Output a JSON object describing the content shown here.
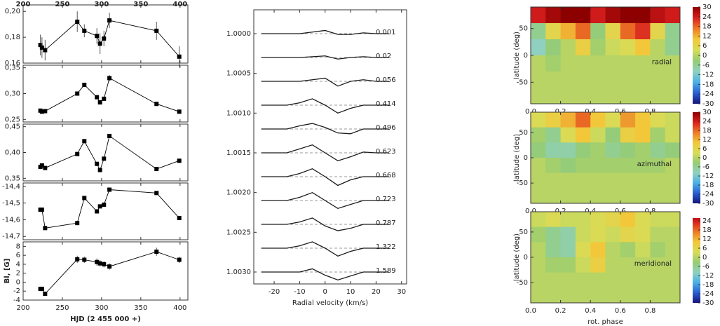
{
  "chart_data": [
    {
      "type": "line",
      "x": [
        222,
        224,
        228,
        269,
        278,
        294,
        298,
        303,
        310,
        370,
        399
      ],
      "xlim": [
        200,
        410
      ],
      "xticks": [
        200,
        250,
        300,
        350,
        400
      ],
      "xtick_side": "top",
      "marker": "square",
      "series": [
        {
          "color": "#000000",
          "values": [
            0.174,
            0.172,
            0.17,
            0.192,
            0.185,
            0.181,
            0.175,
            0.179,
            0.193,
            0.185,
            0.165
          ],
          "errors": [
            0.008,
            0.008,
            0.008,
            0.008,
            0.005,
            0.006,
            0.008,
            0.006,
            0.006,
            0.007,
            0.008
          ]
        }
      ],
      "ylim": [
        0.16,
        0.205
      ],
      "yticks": [
        {
          "value": 0.16,
          "label": "0,16"
        },
        {
          "value": 0.18,
          "label": "0,18"
        },
        {
          "value": 0.2,
          "label": "0,20"
        }
      ]
    },
    {
      "type": "line",
      "x": [
        222,
        224,
        228,
        269,
        278,
        294,
        298,
        303,
        310,
        370,
        399
      ],
      "xlim": [
        200,
        410
      ],
      "xticks": [
        200,
        250,
        300,
        350,
        400
      ],
      "marker": "square",
      "series": [
        {
          "color": "#000000",
          "values": [
            0.267,
            0.265,
            0.266,
            0.3,
            0.317,
            0.293,
            0.283,
            0.29,
            0.33,
            0.28,
            0.265
          ],
          "errors": [
            0.003,
            0.003,
            0.003,
            0.004,
            0.003,
            0.004,
            0.004,
            0.004,
            0.006,
            0.004,
            0.004
          ]
        }
      ],
      "ylim": [
        0.245,
        0.355
      ],
      "yticks": [
        {
          "value": 0.25,
          "label": "0,25"
        },
        {
          "value": 0.3,
          "label": "0,30"
        },
        {
          "value": 0.35,
          "label": "0,35"
        }
      ]
    },
    {
      "type": "line",
      "x": [
        222,
        224,
        228,
        269,
        278,
        294,
        298,
        303,
        310,
        370,
        399
      ],
      "xlim": [
        200,
        410
      ],
      "xticks": [
        200,
        250,
        300,
        350,
        400
      ],
      "marker": "square",
      "series": [
        {
          "color": "#000000",
          "values": [
            0.372,
            0.375,
            0.37,
            0.397,
            0.422,
            0.378,
            0.366,
            0.388,
            0.432,
            0.368,
            0.384
          ],
          "errors": [
            0.003,
            0.003,
            0.003,
            0.003,
            0.003,
            0.003,
            0.003,
            0.003,
            0.003,
            0.003,
            0.003
          ]
        }
      ],
      "ylim": [
        0.345,
        0.455
      ],
      "yticks": [
        {
          "value": 0.35,
          "label": "0,35"
        },
        {
          "value": 0.4,
          "label": "0,40"
        },
        {
          "value": 0.45,
          "label": "0,45"
        }
      ]
    },
    {
      "type": "line",
      "x": [
        222,
        224,
        228,
        269,
        278,
        294,
        298,
        303,
        310,
        370,
        399
      ],
      "xlim": [
        200,
        410
      ],
      "xticks": [
        200,
        250,
        300,
        350,
        400
      ],
      "marker": "square",
      "series": [
        {
          "color": "#000000",
          "values": [
            -14.54,
            -14.54,
            -14.65,
            -14.62,
            -14.47,
            -14.55,
            -14.52,
            -14.51,
            -14.42,
            -14.44,
            -14.59
          ],
          "errors": [
            0.005,
            0.005,
            0.005,
            0.005,
            0.005,
            0.005,
            0.005,
            0.005,
            0.005,
            0.005,
            0.005
          ]
        }
      ],
      "ylim": [
        -14.72,
        -14.38
      ],
      "yticks": [
        {
          "value": -14.4,
          "label": "-14,4"
        },
        {
          "value": -14.5,
          "label": "-14,5"
        },
        {
          "value": -14.6,
          "label": "-14,6"
        },
        {
          "value": -14.7,
          "label": "-14,7"
        }
      ]
    },
    {
      "type": "line",
      "x": [
        222,
        224,
        228,
        269,
        278,
        294,
        298,
        303,
        310,
        370,
        399
      ],
      "xlim": [
        200,
        410
      ],
      "xticks": [
        200,
        250,
        300,
        350,
        400
      ],
      "xtick_side": "bottom",
      "marker": "square",
      "xlabel": "HJD (2 455 000 +)",
      "ylabel": "Bl, [G]",
      "series": [
        {
          "color": "#000000",
          "values": [
            -1.5,
            -1.5,
            -2.6,
            5.1,
            5.0,
            4.5,
            4.2,
            4.0,
            3.5,
            6.8,
            5.0
          ],
          "errors": [
            0.5,
            0.5,
            0.5,
            0.8,
            0.7,
            0.8,
            0.7,
            0.7,
            0.7,
            0.9,
            0.7
          ]
        }
      ],
      "ylim": [
        -4,
        9
      ],
      "yticks": [
        -4,
        -2,
        0,
        2,
        4,
        6,
        8
      ]
    },
    {
      "type": "line",
      "x": [
        -25,
        -20,
        -15,
        -10,
        -5,
        0,
        5,
        10,
        15,
        20,
        25
      ],
      "xlim": [
        -28,
        32
      ],
      "xticks": [
        -20,
        -10,
        0,
        10,
        20,
        30
      ],
      "xtick_side": "bottom",
      "xlabel": "Radial velocity (km/s)",
      "ylim": [
        1.00315,
        0.9997
      ],
      "yticks": [
        {
          "value": 1,
          "label": "1.0000"
        },
        {
          "value": 1.0005,
          "label": "1.0005"
        },
        {
          "value": 1.001,
          "label": "1.0010"
        },
        {
          "value": 1.0015,
          "label": "1.0015"
        },
        {
          "value": 1.002,
          "label": "1.0020"
        },
        {
          "value": 1.0025,
          "label": "1.0025"
        },
        {
          "value": 1.003,
          "label": "1.0030"
        }
      ],
      "series": [
        {
          "name": "0.001",
          "color": "#1a1a1a",
          "values": [
            1,
            1,
            1,
            1,
            0.99998,
            0.99996,
            1.00001,
            1.00001,
            0.99999,
            1,
            1
          ]
        },
        {
          "name": "0.02",
          "color": "#1a1a1a",
          "values": [
            1.0003,
            1.0003,
            1.0003,
            1.0003,
            1.00029,
            1.00028,
            1.00032,
            1.0003,
            1.00029,
            1.0003,
            1.0003
          ]
        },
        {
          "name": "0.056",
          "color": "#1a1a1a",
          "values": [
            1.0006,
            1.0006,
            1.0006,
            1.0006,
            1.00058,
            1.00056,
            1.00066,
            1.0006,
            1.00058,
            1.0006,
            1.0006
          ]
        },
        {
          "name": "0.414",
          "color": "#1a1a1a",
          "values": [
            1.0009,
            1.0009,
            1.0009,
            1.00087,
            1.00082,
            1.0009,
            1.001,
            1.00094,
            1.0009,
            1.0009,
            1.0009
          ]
        },
        {
          "name": "0.496",
          "color": "#1a1a1a",
          "values": [
            1.0012,
            1.0012,
            1.0012,
            1.00116,
            1.00113,
            1.00118,
            1.00125,
            1.00126,
            1.0012,
            1.0012,
            1.0012
          ]
        },
        {
          "name": "0.623",
          "color": "#1a1a1a",
          "values": [
            1.0015,
            1.0015,
            1.0015,
            1.00145,
            1.0014,
            1.0015,
            1.0016,
            1.00155,
            1.00149,
            1.0015,
            1.0015
          ]
        },
        {
          "name": "0.668",
          "color": "#1a1a1a",
          "values": [
            1.0018,
            1.0018,
            1.0018,
            1.00176,
            1.0017,
            1.0018,
            1.00191,
            1.00184,
            1.0018,
            1.0018,
            1.0018
          ]
        },
        {
          "name": "0.723",
          "color": "#1a1a1a",
          "values": [
            1.0021,
            1.0021,
            1.0021,
            1.00206,
            1.002,
            1.0021,
            1.0022,
            1.00215,
            1.0021,
            1.0021,
            1.0021
          ]
        },
        {
          "name": "0.787",
          "color": "#1a1a1a",
          "values": [
            1.0024,
            1.0024,
            1.0024,
            1.00237,
            1.00232,
            1.00242,
            1.00248,
            1.00245,
            1.0024,
            1.0024,
            1.0024
          ]
        },
        {
          "name": "1.322",
          "color": "#1a1a1a",
          "values": [
            1.0027,
            1.0027,
            1.0027,
            1.00267,
            1.00262,
            1.0027,
            1.0028,
            1.00274,
            1.0027,
            1.0027,
            1.0027
          ]
        },
        {
          "name": "1.589",
          "color": "#1a1a1a",
          "values": [
            1.003,
            1.003,
            1.003,
            1.003,
            1.00296,
            1.00304,
            1.0031,
            1.00305,
            1.003,
            1.003,
            1.003
          ]
        }
      ]
    },
    {
      "type": "heatmap",
      "annotation": "radial",
      "ylabel": "latitude (deg)",
      "x": [
        0,
        0.1,
        0.2,
        0.3,
        0.4,
        0.5,
        0.6,
        0.7,
        0.8,
        0.9,
        1.0
      ],
      "y": [
        90,
        60,
        30,
        0,
        -30,
        -60,
        -90
      ],
      "xticks": [
        {
          "value": 0,
          "label": "0.0"
        },
        0.2,
        0.4,
        0.6,
        0.8
      ],
      "yticks": [
        -50,
        0,
        50
      ],
      "xtick_side": "bottom",
      "zlim": [
        -30,
        30
      ],
      "zticks": [
        30,
        24,
        18,
        12,
        6,
        0,
        -6,
        -12,
        -18,
        -24,
        -30
      ],
      "colorscale": [
        "#14147a",
        "#2a5fd0",
        "#4ab0e6",
        "#8fd0c0",
        "#96cc72",
        "#d8dc58",
        "#f2c83a",
        "#ec7a26",
        "#d81e1e",
        "#8c0000"
      ],
      "values": [
        [
          24,
          28,
          30,
          30,
          24,
          28,
          30,
          30,
          26,
          24
        ],
        [
          -6,
          6,
          12,
          18,
          -4,
          6,
          18,
          22,
          6,
          -6
        ],
        [
          -10,
          -4,
          0,
          8,
          -2,
          2,
          4,
          10,
          0,
          -6
        ],
        [
          0,
          -2,
          0,
          0,
          0,
          0,
          0,
          0,
          0,
          0
        ],
        [
          0,
          0,
          0,
          0,
          0,
          0,
          0,
          0,
          0,
          0
        ],
        [
          0,
          0,
          0,
          0,
          0,
          0,
          0,
          0,
          0,
          0
        ]
      ]
    },
    {
      "type": "heatmap",
      "annotation": "azimuthal",
      "ylabel": "latitude (deg)",
      "x": [
        0,
        0.1,
        0.2,
        0.3,
        0.4,
        0.5,
        0.6,
        0.7,
        0.8,
        0.9,
        1.0
      ],
      "y": [
        90,
        60,
        30,
        0,
        -30,
        -60,
        -90
      ],
      "xticks": [
        {
          "value": 0,
          "label": "0.0"
        },
        0.2,
        0.4,
        0.6,
        0.8
      ],
      "yticks": [
        -50,
        0,
        50
      ],
      "xtick_side": "bottom",
      "zlim": [
        -30,
        30
      ],
      "zticks": [
        30,
        24,
        18,
        12,
        6,
        0,
        -6,
        -12,
        -18,
        -24,
        -30
      ],
      "colorscale": [
        "#14147a",
        "#2a5fd0",
        "#4ab0e6",
        "#8fd0c0",
        "#96cc72",
        "#d8dc58",
        "#f2c83a",
        "#ec7a26",
        "#d81e1e",
        "#8c0000"
      ],
      "values": [
        [
          4,
          8,
          12,
          18,
          10,
          4,
          14,
          10,
          4,
          2
        ],
        [
          -2,
          -6,
          4,
          10,
          2,
          -4,
          8,
          10,
          -2,
          2
        ],
        [
          -4,
          -8,
          -8,
          -4,
          -2,
          -6,
          -4,
          -2,
          -6,
          -4
        ],
        [
          0,
          -2,
          -4,
          -2,
          -2,
          -2,
          -2,
          -2,
          -2,
          0
        ],
        [
          0,
          0,
          0,
          0,
          0,
          0,
          0,
          0,
          0,
          0
        ],
        [
          0,
          0,
          0,
          0,
          0,
          0,
          0,
          0,
          0,
          0
        ]
      ]
    },
    {
      "type": "heatmap",
      "annotation": "meridional",
      "ylabel": "latitude (deg)",
      "xlabel": "rot. phase",
      "x": [
        0,
        0.1,
        0.2,
        0.3,
        0.4,
        0.5,
        0.6,
        0.7,
        0.8,
        0.9,
        1.0
      ],
      "y": [
        90,
        60,
        30,
        0,
        -30,
        -60,
        -90
      ],
      "xticks": [
        {
          "value": 0,
          "label": "0.0"
        },
        0.2,
        0.4,
        0.6,
        0.8
      ],
      "yticks": [
        -50,
        0,
        50
      ],
      "xtick_side": "bottom",
      "zlim": [
        -30,
        30
      ],
      "zticks": [
        24,
        18,
        12,
        6,
        0,
        -6,
        -12,
        -18,
        -24,
        -30
      ],
      "colorscale": [
        "#14147a",
        "#2a5fd0",
        "#4ab0e6",
        "#8fd0c0",
        "#96cc72",
        "#d8dc58",
        "#f2c83a",
        "#ec7a26",
        "#d81e1e",
        "#8c0000"
      ],
      "values": [
        [
          2,
          4,
          2,
          2,
          4,
          6,
          10,
          4,
          2,
          2
        ],
        [
          -2,
          -6,
          -8,
          2,
          4,
          2,
          6,
          4,
          0,
          0
        ],
        [
          0,
          -6,
          -8,
          4,
          10,
          0,
          -2,
          2,
          -2,
          0
        ],
        [
          0,
          -2,
          -2,
          2,
          8,
          0,
          0,
          0,
          0,
          0
        ],
        [
          0,
          0,
          0,
          0,
          0,
          0,
          0,
          0,
          0,
          0
        ],
        [
          0,
          0,
          0,
          0,
          0,
          0,
          0,
          0,
          0,
          0
        ]
      ]
    }
  ]
}
